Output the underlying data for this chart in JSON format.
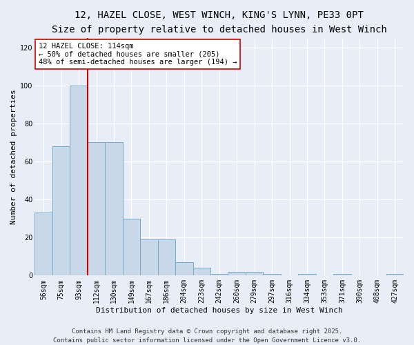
{
  "title_line1": "12, HAZEL CLOSE, WEST WINCH, KING'S LYNN, PE33 0PT",
  "title_line2": "Size of property relative to detached houses in West Winch",
  "xlabel": "Distribution of detached houses by size in West Winch",
  "ylabel": "Number of detached properties",
  "categories": [
    "56sqm",
    "75sqm",
    "93sqm",
    "112sqm",
    "130sqm",
    "149sqm",
    "167sqm",
    "186sqm",
    "204sqm",
    "223sqm",
    "242sqm",
    "260sqm",
    "279sqm",
    "297sqm",
    "316sqm",
    "334sqm",
    "353sqm",
    "371sqm",
    "390sqm",
    "408sqm",
    "427sqm"
  ],
  "values": [
    33,
    68,
    100,
    70,
    70,
    30,
    19,
    19,
    7,
    4,
    1,
    2,
    2,
    1,
    0,
    1,
    0,
    1,
    0,
    0,
    1
  ],
  "bar_color": "#c8d8e8",
  "bar_edge_color": "#7aaac8",
  "marker_index": 3,
  "marker_color": "#cc0000",
  "annotation_text": "12 HAZEL CLOSE: 114sqm\n← 50% of detached houses are smaller (205)\n48% of semi-detached houses are larger (194) →",
  "annotation_box_color": "#ffffff",
  "annotation_box_edge": "#cc0000",
  "ylim": [
    0,
    125
  ],
  "yticks": [
    0,
    20,
    40,
    60,
    80,
    100,
    120
  ],
  "background_color": "#e8eef8",
  "plot_bg_color": "#e8eef8",
  "footer_line1": "Contains HM Land Registry data © Crown copyright and database right 2025.",
  "footer_line2": "Contains public sector information licensed under the Open Government Licence v3.0.",
  "title_fontsize": 10,
  "subtitle_fontsize": 9,
  "axis_label_fontsize": 8,
  "tick_fontsize": 7,
  "annotation_fontsize": 7.5,
  "footer_fontsize": 6.5
}
